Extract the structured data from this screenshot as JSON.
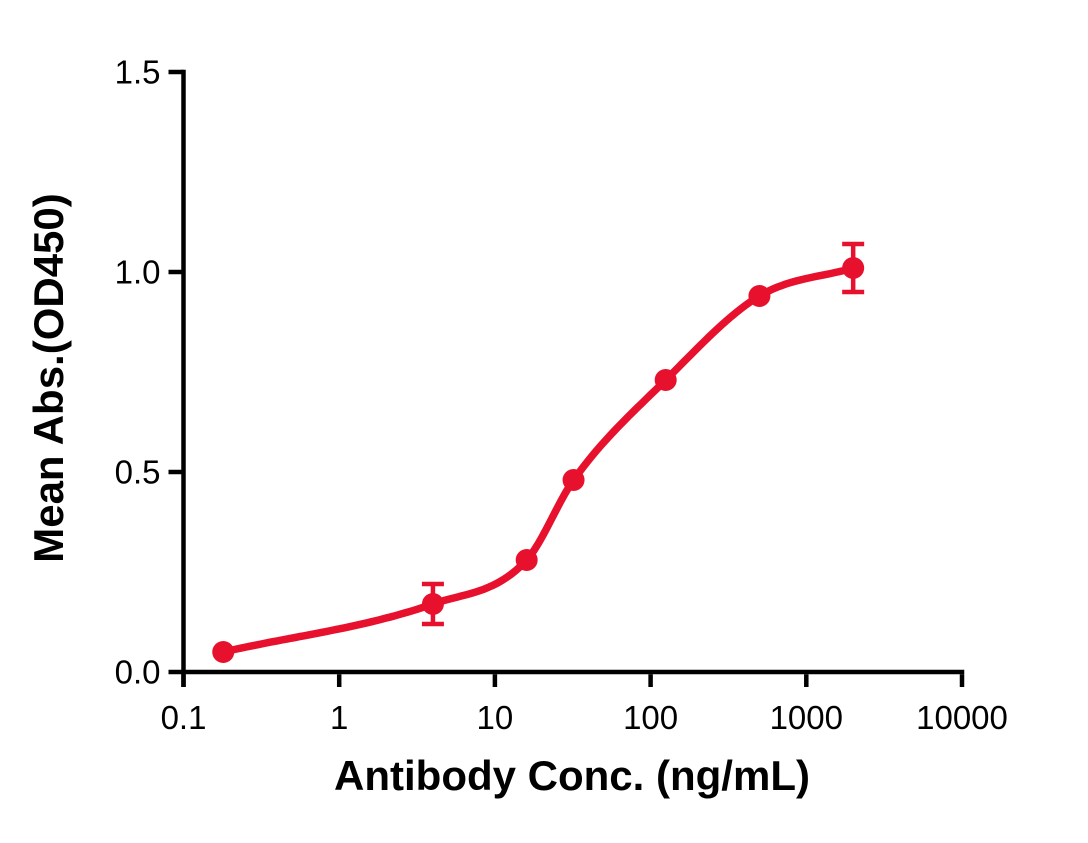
{
  "chart_data": {
    "type": "scatter",
    "curve": "4PL sigmoid fit through points",
    "x_scale": "log",
    "x": [
      0.18,
      4,
      16,
      32,
      125,
      500,
      2000
    ],
    "y": [
      0.05,
      0.17,
      0.28,
      0.48,
      0.73,
      0.94,
      1.01
    ],
    "y_err": [
      0,
      0.05,
      0,
      0,
      0,
      0,
      0.06
    ],
    "x_ticks": [
      "0.1",
      "1",
      "10",
      "100",
      "1000",
      "10000"
    ],
    "x_tick_values": [
      0.1,
      1,
      10,
      100,
      1000,
      10000
    ],
    "y_ticks": [
      "0.0",
      "0.5",
      "1.0",
      "1.5"
    ],
    "y_tick_values": [
      0,
      0.5,
      1.0,
      1.5
    ],
    "xlabel": "Antibody Conc. (ng/mL)",
    "ylabel": "Mean Abs.(OD450)",
    "xlim": [
      0.1,
      10000
    ],
    "ylim": [
      0,
      1.5
    ],
    "grid": "off",
    "legend": "none",
    "series_color": "#E8112D",
    "axis_color": "#000000",
    "background_color": "#FFFFFF",
    "marker": "circle"
  }
}
